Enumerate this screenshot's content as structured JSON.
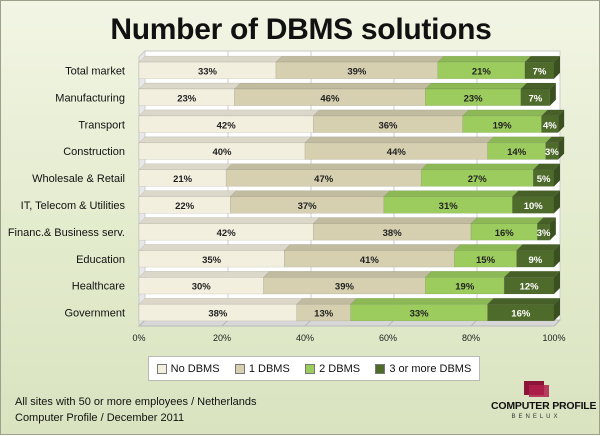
{
  "chart_data": {
    "type": "bar",
    "orientation": "horizontal",
    "stacked": "percent",
    "title": "Number of DBMS solutions",
    "categories": [
      "Total market",
      "Manufacturing",
      "Transport",
      "Construction",
      "Wholesale & Retail",
      "IT, Telecom & Utilities",
      "Financ.& Business serv.",
      "Education",
      "Healthcare",
      "Government"
    ],
    "series": [
      {
        "name": "No DBMS",
        "values": [
          33,
          23,
          42,
          40,
          21,
          22,
          42,
          35,
          30,
          38
        ]
      },
      {
        "name": "1 DBMS",
        "values": [
          39,
          46,
          36,
          44,
          47,
          37,
          38,
          41,
          39,
          13
        ]
      },
      {
        "name": "2 DBMS",
        "values": [
          21,
          23,
          19,
          14,
          27,
          31,
          16,
          15,
          19,
          33
        ]
      },
      {
        "name": "3 or more DBMS",
        "values": [
          7,
          7,
          4,
          3,
          5,
          10,
          3,
          9,
          12,
          16
        ]
      }
    ],
    "x_ticks": [
      "0%",
      "20%",
      "40%",
      "60%",
      "80%",
      "100%"
    ],
    "xlim": [
      0,
      100
    ],
    "grid": true,
    "legend": "bottom",
    "colors": {
      "No DBMS": "#f3efdf",
      "1 DBMS": "#d6d0b1",
      "2 DBMS": "#9ccc5e",
      "3 or more DBMS": "#4f6b2c"
    }
  },
  "footer": {
    "line1": "All sites with 50 or more employees  / Netherlands",
    "line2": "Computer Profile / December 2011"
  },
  "logo": {
    "name": "COMPUTER PROFILE",
    "sub": "BENELUX"
  }
}
